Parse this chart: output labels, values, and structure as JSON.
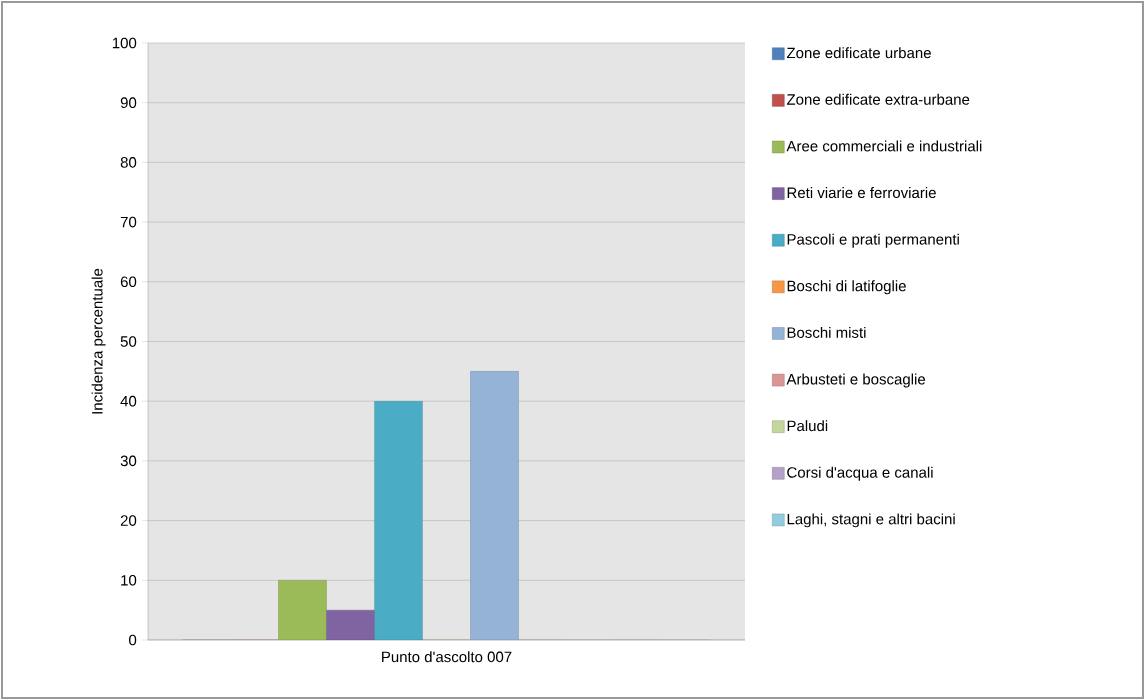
{
  "chart_data": {
    "type": "bar",
    "ylabel": "Incidenza percentuale",
    "categories": [
      "Punto d'ascolto 007"
    ],
    "series": [
      {
        "name": "Zone edificate urbane",
        "color": "#4f81bd",
        "values": [
          0
        ]
      },
      {
        "name": "Zone edificate extra-urbane",
        "color": "#c0504d",
        "values": [
          0
        ]
      },
      {
        "name": "Aree commerciali e industriali",
        "color": "#9bbb59",
        "values": [
          10
        ]
      },
      {
        "name": "Reti viarie e ferroviarie",
        "color": "#8064a2",
        "values": [
          5
        ]
      },
      {
        "name": "Pascoli e prati permanenti",
        "color": "#4bacc6",
        "values": [
          40
        ]
      },
      {
        "name": "Boschi di latifoglie",
        "color": "#f79646",
        "values": [
          0
        ]
      },
      {
        "name": "Boschi misti",
        "color": "#95b3d7",
        "values": [
          45
        ]
      },
      {
        "name": "Arbusteti e boscaglie",
        "color": "#d99694",
        "values": [
          0
        ]
      },
      {
        "name": "Paludi",
        "color": "#c3d69b",
        "values": [
          0
        ]
      },
      {
        "name": "Corsi d'acqua e canali",
        "color": "#b3a2c7",
        "values": [
          0
        ]
      },
      {
        "name": "Laghi, stagni e altri bacini",
        "color": "#93cddd",
        "values": [
          0
        ]
      }
    ],
    "ylim": [
      0,
      100
    ],
    "yticks": [
      0,
      10,
      20,
      30,
      40,
      50,
      60,
      70,
      80,
      90,
      100
    ],
    "grid": "y",
    "legend": "right"
  }
}
